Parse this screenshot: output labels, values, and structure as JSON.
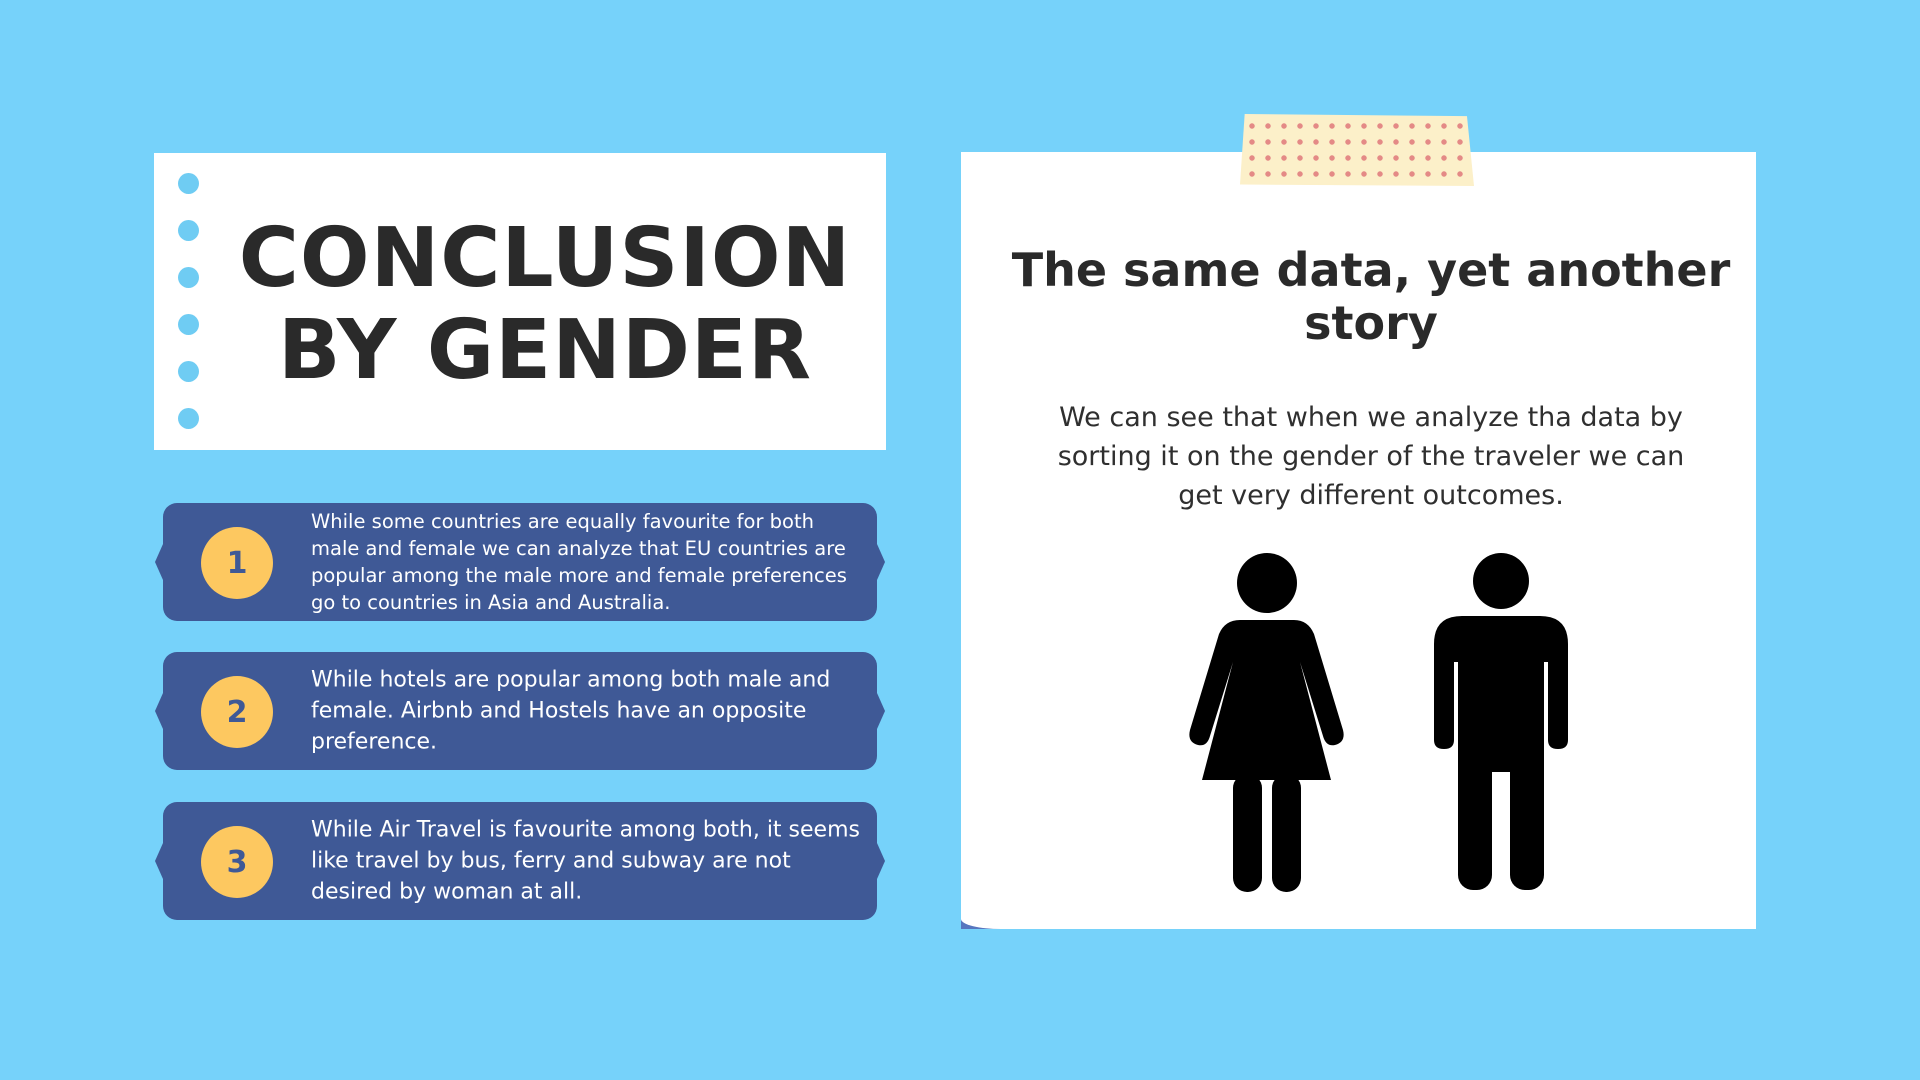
{
  "title": {
    "line1": "CONCLUSION",
    "line2": "BY GENDER"
  },
  "points": [
    {
      "number": "1",
      "text": "While some countries are equally favourite for both male and female we can analyze that EU countries are popular among the male more and female preferences go to countries in Asia and Australia."
    },
    {
      "number": "2",
      "text": "While hotels are popular among both male and female. Airbnb and Hostels have an opposite preference."
    },
    {
      "number": "3",
      "text": "While Air Travel is favourite among both, it seems like travel by bus, ferry and subway are not desired by woman at all."
    }
  ],
  "note": {
    "heading": "The same data, yet another story",
    "body": "We can see that when we analyze tha data by sorting it on the gender of the traveler we can get very different outcomes."
  },
  "icons": {
    "female": "female-figure-icon",
    "male": "male-figure-icon"
  },
  "colors": {
    "background": "#76d2fa",
    "card_blue": "#3f5996",
    "badge_yellow": "#fdc860",
    "text_dark": "#2a2a2a"
  }
}
